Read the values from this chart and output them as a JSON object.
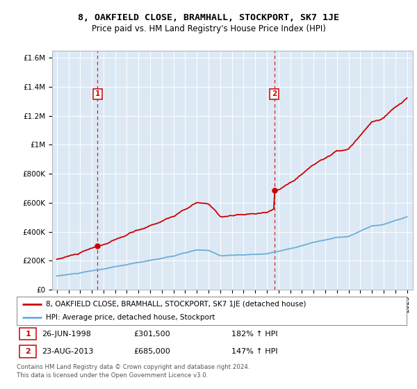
{
  "title": "8, OAKFIELD CLOSE, BRAMHALL, STOCKPORT, SK7 1JE",
  "subtitle": "Price paid vs. HM Land Registry's House Price Index (HPI)",
  "bg_color": "#dce9f5",
  "sale1_price": 301500,
  "sale2_price": 685000,
  "legend_line1": "8, OAKFIELD CLOSE, BRAMHALL, STOCKPORT, SK7 1JE (detached house)",
  "legend_line2": "HPI: Average price, detached house, Stockport",
  "footer": "Contains HM Land Registry data © Crown copyright and database right 2024.\nThis data is licensed under the Open Government Licence v3.0.",
  "ylabel_ticks": [
    "£0",
    "£200K",
    "£400K",
    "£600K",
    "£800K",
    "£1M",
    "£1.2M",
    "£1.4M",
    "£1.6M"
  ],
  "ytick_vals": [
    0,
    200000,
    400000,
    600000,
    800000,
    1000000,
    1200000,
    1400000,
    1600000
  ],
  "ylim": [
    0,
    1650000
  ],
  "hpi_color": "#6baed6",
  "price_color": "#cc0000",
  "dashed_color": "#cc0000",
  "hpi_knots": [
    1995,
    1997,
    1999,
    2001,
    2003,
    2005,
    2007,
    2008,
    2009,
    2010,
    2011,
    2012,
    2013,
    2014,
    2015,
    2016,
    2017,
    2018,
    2019,
    2020,
    2021,
    2022,
    2023,
    2024,
    2025
  ],
  "hpi_vals": [
    95000,
    115000,
    140000,
    168000,
    198000,
    230000,
    268000,
    262000,
    228000,
    232000,
    232000,
    236000,
    242000,
    258000,
    278000,
    300000,
    322000,
    340000,
    355000,
    360000,
    395000,
    430000,
    440000,
    465000,
    490000
  ]
}
